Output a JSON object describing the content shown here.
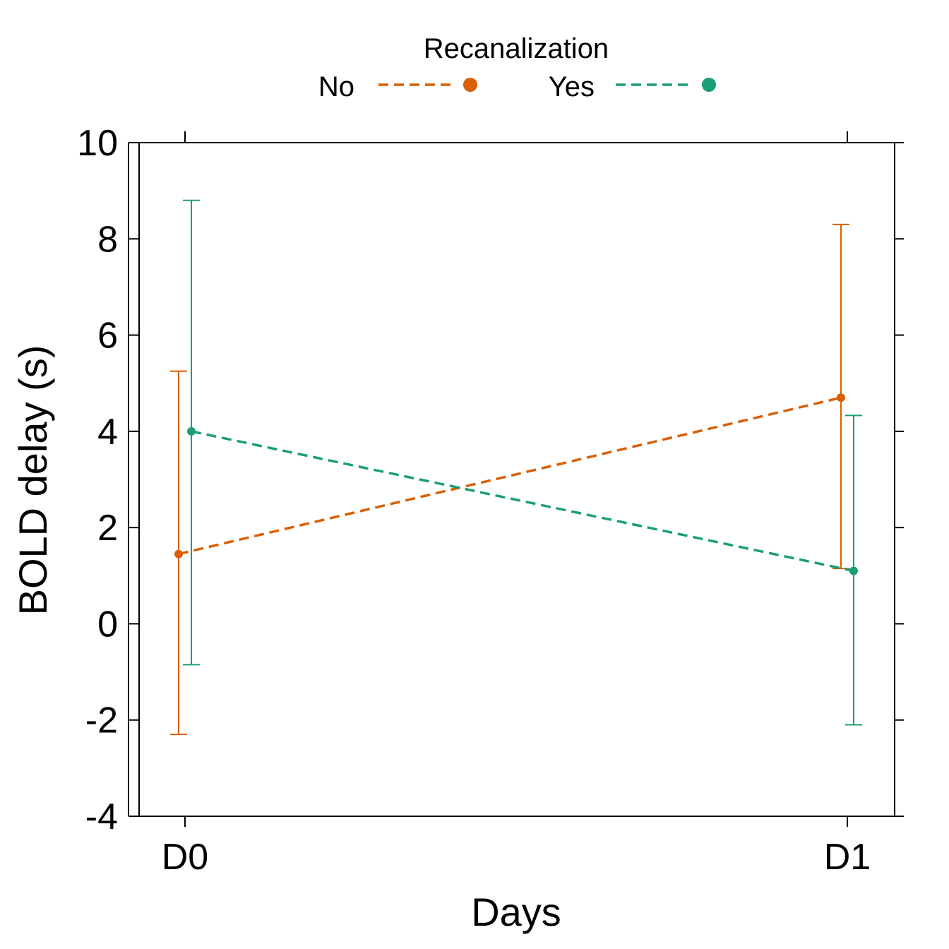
{
  "chart_data": {
    "type": "line",
    "xlabel": "Days",
    "ylabel": "BOLD delay (s)",
    "categories": [
      "D0",
      "D1"
    ],
    "ylim": [
      -4,
      10
    ],
    "yticks": [
      -4,
      -2,
      0,
      2,
      4,
      6,
      8,
      10
    ],
    "grid": false,
    "legend": {
      "title": "Recanalization",
      "placement": "top-center"
    },
    "series": [
      {
        "name": "No",
        "color": "#d95f02",
        "line_style": "dashed",
        "values": [
          1.45,
          4.7
        ],
        "error_low": [
          -2.3,
          1.15
        ],
        "error_high": [
          5.25,
          8.3
        ]
      },
      {
        "name": "Yes",
        "color": "#1b9e77",
        "line_style": "dashed",
        "values": [
          4.0,
          1.1
        ],
        "error_low": [
          -0.85,
          -2.1
        ],
        "error_high": [
          8.8,
          4.33
        ]
      }
    ]
  }
}
